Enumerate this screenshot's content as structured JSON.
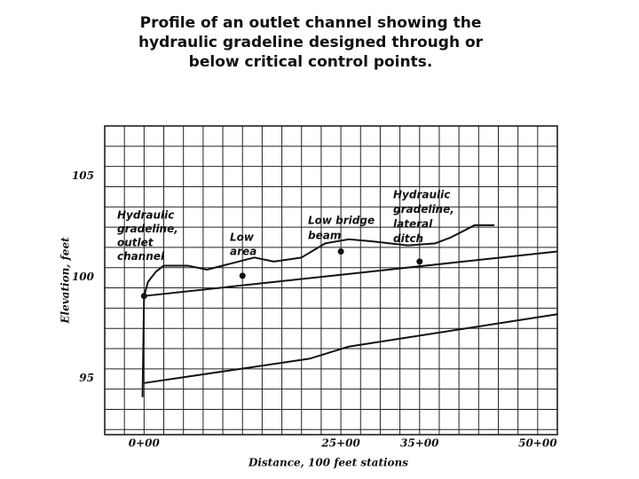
{
  "chart_data": {
    "type": "line",
    "title": [
      "Profile of an outlet channel showing the",
      "hydraulic gradeline designed through or",
      "below critical control points."
    ],
    "x_label": "Distance, 100 feet stations",
    "y_label": "Elevation, feet",
    "xlim": [
      -5,
      52.5
    ],
    "ylim": [
      92.75,
      108
    ],
    "xticks": [
      {
        "value": 0,
        "label": "0+00"
      },
      {
        "value": 25,
        "label": "25+00"
      },
      {
        "value": 35,
        "label": "35+00"
      },
      {
        "value": 50,
        "label": "50+00"
      }
    ],
    "yticks": [
      95,
      100,
      105
    ],
    "grid": true,
    "xgrid": [
      -5,
      -2.5,
      0,
      2.5,
      5,
      7.5,
      10,
      12.5,
      15,
      17.5,
      20,
      22.5,
      25,
      27.5,
      30,
      32.5,
      35,
      37.5,
      40,
      42.5,
      45,
      47.5,
      50,
      52.5
    ],
    "ygrid": [
      93,
      94,
      95,
      96,
      97,
      98,
      99,
      100,
      101,
      102,
      103,
      104,
      105,
      106,
      107,
      108
    ],
    "series": [
      {
        "color": "#111111",
        "x": [
          0,
          21,
          26,
          52.5
        ],
        "values": [
          95.3,
          96.5,
          97.1,
          98.7
        ]
      },
      {
        "color": "#111111",
        "x": [
          0,
          52.5
        ],
        "values": [
          99.6,
          101.8
        ]
      },
      {
        "color": "#111111",
        "x": [
          -0.2,
          0,
          0.5,
          1.5,
          2.5,
          5.5,
          8,
          11,
          14,
          16.5,
          20,
          23,
          26,
          29,
          33.5,
          37,
          39,
          42,
          44.5
        ],
        "values": [
          94.6,
          99.6,
          100.3,
          100.8,
          101.1,
          101.1,
          100.9,
          101.2,
          101.5,
          101.3,
          101.5,
          102.2,
          102.4,
          102.3,
          102.1,
          102.2,
          102.5,
          103.1,
          103.1
        ]
      }
    ],
    "points": {
      "color": "#111111",
      "x": [
        0,
        12.5,
        25,
        35
      ],
      "values": [
        99.6,
        100.6,
        101.8,
        101.3
      ]
    },
    "annotations": [
      [
        "Hydraulic",
        "gradeline,",
        "outlet",
        "channel"
      ],
      [
        "Low",
        "area"
      ],
      [
        "Low bridge",
        "beam"
      ],
      [
        "Hydraulic",
        "gradeline,",
        "lateral",
        "ditch"
      ]
    ]
  }
}
